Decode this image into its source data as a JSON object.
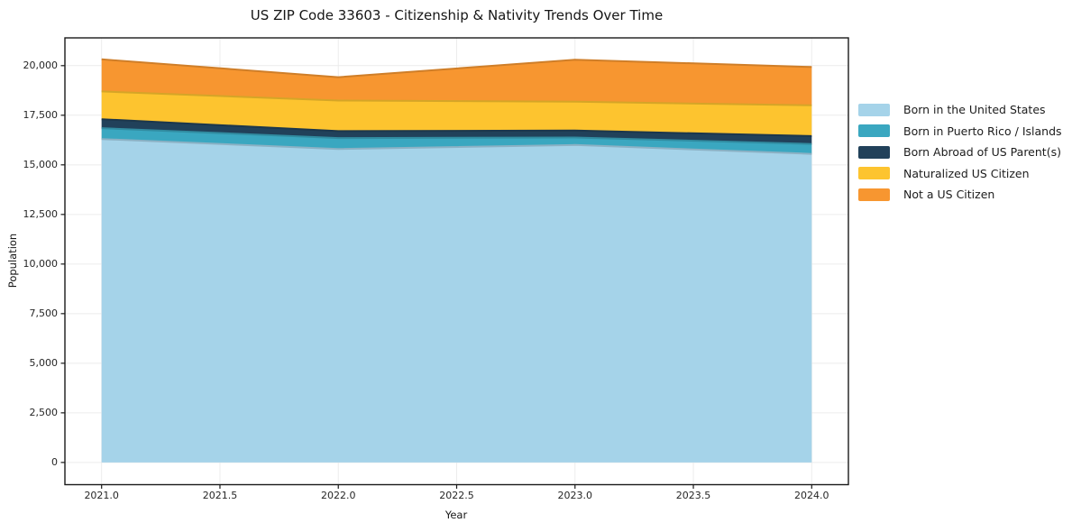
{
  "chart_data": {
    "type": "area",
    "stacked": true,
    "title": "US ZIP Code 33603 - Citizenship & Nativity Trends Over Time",
    "xlabel": "Year",
    "ylabel": "Population",
    "x": [
      2021,
      2022,
      2023,
      2024
    ],
    "series": [
      {
        "id": "born-in-us",
        "name": "Born in the United States",
        "color": "#a5d3e9",
        "values": [
          16300,
          15800,
          16000,
          15550
        ]
      },
      {
        "id": "born-pr-islands",
        "name": "Born in Puerto Rico / Islands",
        "color": "#3aa7c0",
        "values": [
          550,
          550,
          380,
          500
        ]
      },
      {
        "id": "born-abroad",
        "name": "Born Abroad of US Parent(s)",
        "color": "#21415a",
        "values": [
          450,
          350,
          350,
          400
        ]
      },
      {
        "id": "naturalized",
        "name": "Naturalized US Citizen",
        "color": "#fdc42f",
        "values": [
          1400,
          1540,
          1450,
          1550
        ]
      },
      {
        "id": "not-citizen",
        "name": "Not a US Citizen",
        "color": "#f79630",
        "values": [
          1620,
          1180,
          2120,
          1930
        ]
      }
    ],
    "totals_by_year": [
      20320,
      19420,
      20300,
      19930
    ],
    "xticks": {
      "values": [
        2021.0,
        2021.5,
        2022.0,
        2022.5,
        2023.0,
        2023.5,
        2024.0
      ],
      "labels": [
        "2021.0",
        "2021.5",
        "2022.0",
        "2022.5",
        "2023.0",
        "2023.5",
        "2024.0"
      ]
    },
    "yticks": {
      "values": [
        0,
        2500,
        5000,
        7500,
        10000,
        12500,
        15000,
        17500,
        20000
      ],
      "labels": [
        "0",
        "2,500",
        "5,000",
        "7,500",
        "10,000",
        "12,500",
        "15,000",
        "17,500",
        "20,000"
      ]
    },
    "xlim": [
      2020.845,
      2024.155
    ],
    "ylim": [
      -1120,
      21400
    ],
    "grid": true,
    "grid_color": "#ececec",
    "spine_color": "#1a1a1a",
    "background": "#ffffff",
    "legend_position": "right"
  }
}
